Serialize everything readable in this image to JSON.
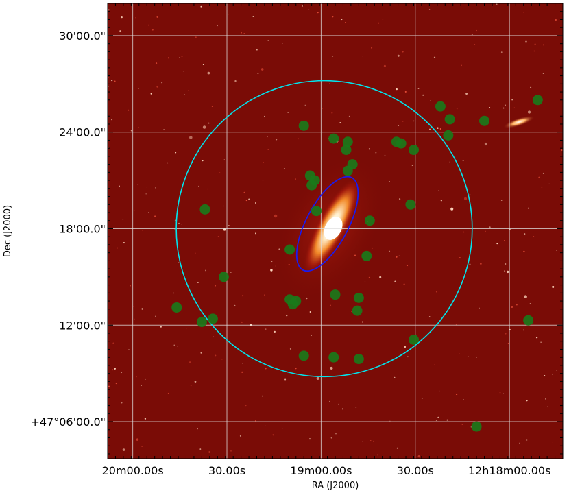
{
  "chart_data": {
    "type": "scatter",
    "title": "",
    "xlabel": "RA (J2000)",
    "ylabel": "Dec (J2000)",
    "x_unit": "seconds of RA offset from 12h18m00s",
    "y_unit": "arcmin of Dec offset from +47°00'",
    "xlim": [
      128.0,
      -17.0
    ],
    "ylim": [
      3.7,
      32.0
    ],
    "x_ticks": [
      {
        "label": "20m00.00s",
        "value": 120
      },
      {
        "label": "30.00s",
        "value": 90
      },
      {
        "label": "19m00.00s",
        "value": 60
      },
      {
        "label": "30.00s",
        "value": 30
      },
      {
        "label": "12h18m00.00s",
        "value": 0
      }
    ],
    "y_ticks": [
      {
        "label": "30'00.0\"",
        "value": 30
      },
      {
        "label": "24'00.0\"",
        "value": 24
      },
      {
        "label": "18'00.0\"",
        "value": 18
      },
      {
        "label": "12'00.0\"",
        "value": 12
      },
      {
        "label": "+47°06'00.0\"",
        "value": 6
      }
    ],
    "grid": true,
    "grid_color": "#e0e0e0",
    "background_image": "optical sky image, dark red colormap, galaxy at center",
    "image_color": "#7a0c06",
    "marker_color": "#1a7a1a",
    "marker_shape": "filled circle",
    "circle": {
      "center": [
        59.0,
        18.0
      ],
      "radius_arcmin": 9.2,
      "color": "#00e5ee"
    },
    "ellipse": {
      "center": [
        58.0,
        18.3
      ],
      "semi_major_arcmin": 3.25,
      "semi_minor_arcmin": 1.3,
      "angle_deg": 28,
      "color": "#1a1aee"
    },
    "points": [
      {
        "x": -9.0,
        "y": 26.0
      },
      {
        "x": 22.0,
        "y": 25.6
      },
      {
        "x": 19.0,
        "y": 24.8
      },
      {
        "x": 8.0,
        "y": 24.7
      },
      {
        "x": 19.5,
        "y": 23.8
      },
      {
        "x": 36.0,
        "y": 23.4
      },
      {
        "x": 65.5,
        "y": 24.4
      },
      {
        "x": 56.0,
        "y": 23.6
      },
      {
        "x": 51.5,
        "y": 23.4
      },
      {
        "x": 52.0,
        "y": 22.9
      },
      {
        "x": 34.5,
        "y": 23.3
      },
      {
        "x": 30.5,
        "y": 22.9
      },
      {
        "x": 50.0,
        "y": 22.0
      },
      {
        "x": 51.5,
        "y": 21.6
      },
      {
        "x": 63.5,
        "y": 21.3
      },
      {
        "x": 62.0,
        "y": 21.0
      },
      {
        "x": 63.0,
        "y": 20.7
      },
      {
        "x": 31.5,
        "y": 19.5
      },
      {
        "x": 97.0,
        "y": 19.2
      },
      {
        "x": 61.5,
        "y": 19.1
      },
      {
        "x": 44.5,
        "y": 18.5
      },
      {
        "x": 70.0,
        "y": 16.7
      },
      {
        "x": 45.5,
        "y": 16.3
      },
      {
        "x": 91.0,
        "y": 15.0
      },
      {
        "x": 55.5,
        "y": 13.9
      },
      {
        "x": 48.0,
        "y": 13.7
      },
      {
        "x": 68.0,
        "y": 13.5
      },
      {
        "x": 69.0,
        "y": 13.3
      },
      {
        "x": 70.0,
        "y": 13.6
      },
      {
        "x": 106.0,
        "y": 13.1
      },
      {
        "x": 48.5,
        "y": 12.9
      },
      {
        "x": 94.5,
        "y": 12.4
      },
      {
        "x": 98.0,
        "y": 12.2
      },
      {
        "x": -6.0,
        "y": 12.3
      },
      {
        "x": 30.5,
        "y": 11.1
      },
      {
        "x": 65.5,
        "y": 10.1
      },
      {
        "x": 56.0,
        "y": 10.0
      },
      {
        "x": 48.0,
        "y": 9.9
      },
      {
        "x": 10.5,
        "y": 5.7
      }
    ]
  }
}
